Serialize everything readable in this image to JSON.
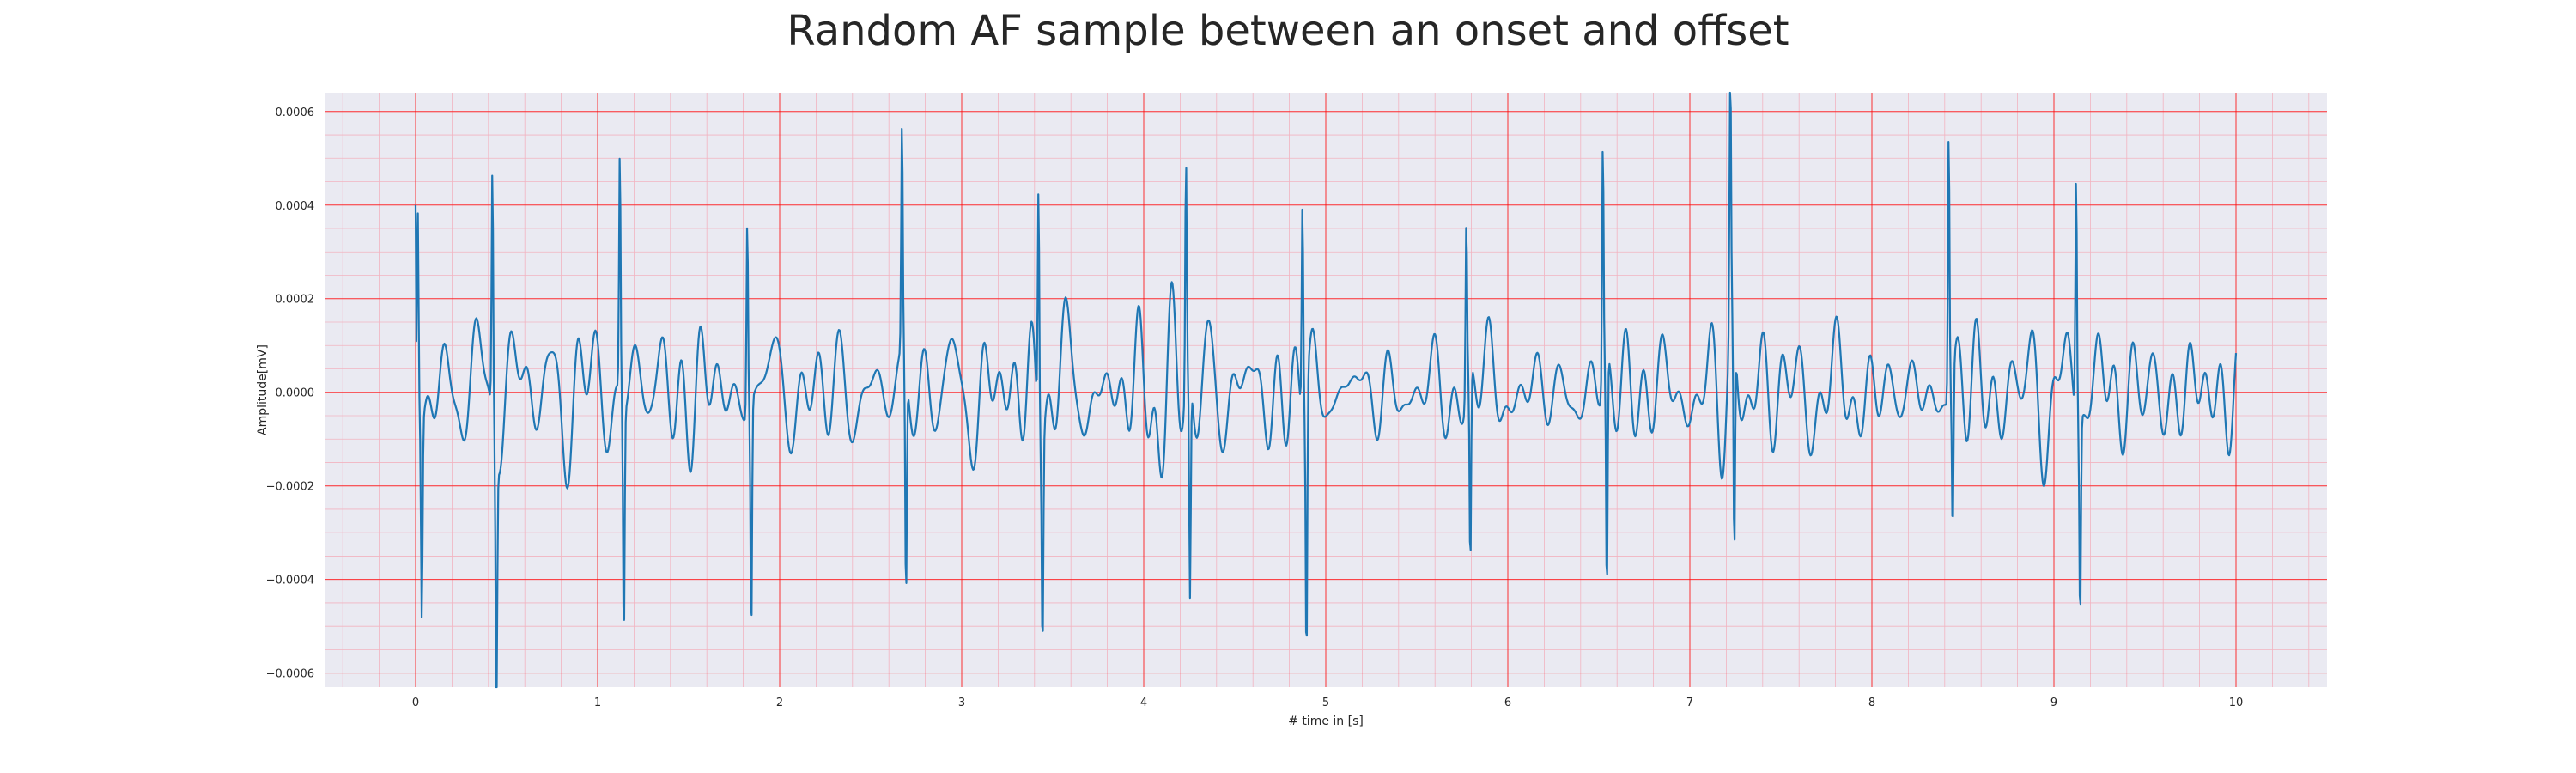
{
  "chart_data": {
    "type": "line",
    "title": "Random AF sample between an onset and offset",
    "xlabel": "# time in [s]",
    "ylabel": "Amplitude[mV]",
    "xlim": [
      -0.5,
      10.5
    ],
    "ylim": [
      -0.00063,
      0.00064
    ],
    "xticks": [
      0,
      1,
      2,
      3,
      4,
      5,
      6,
      7,
      8,
      9,
      10
    ],
    "yticks": [
      -0.0006,
      -0.0004,
      -0.0002,
      0.0,
      0.0002,
      0.0004,
      0.0006
    ],
    "ytick_labels": [
      "−0.0006",
      "−0.0004",
      "−0.0002",
      "0.0000",
      "0.0002",
      "0.0004",
      "0.0006"
    ],
    "grid": true,
    "minor_grid": true,
    "background_color": "#eaeaf2",
    "grid_color": "#ff0000",
    "line_color": "#1f77b4",
    "qrs_complexes": [
      {
        "t": 0.02,
        "r": 0.0004,
        "s": -0.00042
      },
      {
        "t": 0.43,
        "r": 0.00053,
        "s": -0.00058
      },
      {
        "t": 1.13,
        "r": 0.00052,
        "s": -0.00049
      },
      {
        "t": 1.83,
        "r": 0.00042,
        "s": -0.0005
      },
      {
        "t": 2.68,
        "r": 0.00049,
        "s": -0.00049
      },
      {
        "t": 3.43,
        "r": 0.00052,
        "s": -0.00044
      },
      {
        "t": 4.24,
        "r": 0.00049,
        "s": -0.00047
      },
      {
        "t": 4.88,
        "r": 0.00046,
        "s": -0.00058
      },
      {
        "t": 5.78,
        "r": 0.00038,
        "s": -0.00043
      },
      {
        "t": 6.53,
        "r": 0.00053,
        "s": -0.00051
      },
      {
        "t": 7.23,
        "r": 0.00058,
        "s": -0.00048
      },
      {
        "t": 8.43,
        "r": 0.00058,
        "s": -0.00034
      },
      {
        "t": 9.13,
        "r": 0.00052,
        "s": -0.00043
      }
    ],
    "x_range": [
      0,
      10
    ]
  }
}
